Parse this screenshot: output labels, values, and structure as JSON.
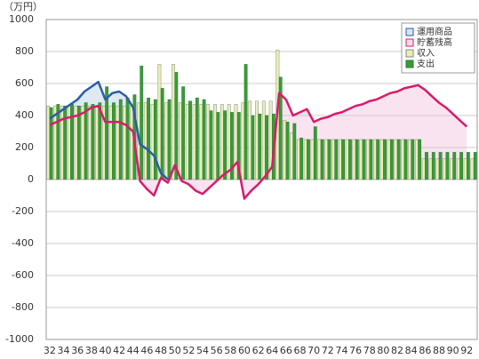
{
  "chart_data": {
    "type": "bar-line",
    "unit_label": "（万円）",
    "categories": [
      "32",
      null,
      "34",
      null,
      "36",
      null,
      "38",
      null,
      "40",
      null,
      "42",
      null,
      "44",
      null,
      "46",
      null,
      "48",
      null,
      "50",
      null,
      "52",
      null,
      "54",
      null,
      "56",
      null,
      "58",
      null,
      "60",
      null,
      "62",
      null,
      "64",
      null,
      "66",
      null,
      "68",
      null,
      "70",
      null,
      "72",
      null,
      "74",
      null,
      "76",
      null,
      "78",
      null,
      "80",
      null,
      "82",
      null,
      "84",
      null,
      "86",
      null,
      "88",
      null,
      "90",
      null,
      "92",
      null
    ],
    "series": [
      {
        "name": "運用商品",
        "kind": "area-line",
        "color": "#2a5caa",
        "fill": "#d6e4f0",
        "values": [
          380,
          410,
          440,
          470,
          500,
          550,
          580,
          610,
          500,
          540,
          550,
          520,
          450,
          220,
          190,
          150,
          40,
          0,
          null,
          null,
          null,
          null,
          null,
          null,
          null,
          null,
          null,
          null,
          null,
          null,
          null,
          null,
          null,
          null,
          null,
          null,
          null,
          null,
          null,
          null,
          null,
          null,
          null,
          null,
          null,
          null,
          null,
          null,
          null,
          null,
          null,
          null,
          null,
          null,
          null,
          null,
          null,
          null,
          null,
          null,
          null,
          null
        ]
      },
      {
        "name": "貯蓄残高",
        "kind": "area-line",
        "color": "#d81b6a",
        "fill": "#f7dcec",
        "values": [
          340,
          360,
          380,
          390,
          400,
          420,
          450,
          460,
          360,
          360,
          360,
          340,
          300,
          -10,
          -60,
          -100,
          10,
          -20,
          90,
          -10,
          -30,
          -70,
          -90,
          -50,
          -10,
          30,
          60,
          110,
          -120,
          -70,
          -30,
          20,
          80,
          540,
          500,
          400,
          420,
          440,
          360,
          380,
          390,
          410,
          420,
          440,
          460,
          470,
          490,
          500,
          520,
          540,
          550,
          570,
          580,
          590,
          560,
          520,
          480,
          450,
          410,
          370,
          330,
          null
        ]
      },
      {
        "name": "収入",
        "kind": "bar",
        "color": "#e8efb4",
        "stroke": "#8a8a8a",
        "values": [
          460,
          460,
          460,
          460,
          460,
          460,
          460,
          460,
          460,
          460,
          460,
          460,
          460,
          480,
          480,
          470,
          720,
          480,
          720,
          480,
          470,
          470,
          470,
          470,
          470,
          470,
          470,
          470,
          480,
          490,
          490,
          490,
          490,
          810,
          370,
          290,
          250,
          250,
          250,
          250,
          250,
          250,
          250,
          250,
          250,
          250,
          250,
          250,
          250,
          250,
          250,
          250,
          250,
          250,
          130,
          130,
          130,
          130,
          130,
          130,
          130,
          130
        ]
      },
      {
        "name": "支出",
        "kind": "bar",
        "color": "#3a9a3a",
        "stroke": "#2c7a2c",
        "values": [
          450,
          470,
          460,
          470,
          460,
          480,
          470,
          480,
          580,
          480,
          500,
          510,
          530,
          710,
          510,
          500,
          570,
          500,
          670,
          580,
          490,
          510,
          500,
          430,
          420,
          430,
          420,
          420,
          720,
          400,
          410,
          400,
          410,
          640,
          360,
          350,
          260,
          250,
          330,
          250,
          250,
          250,
          250,
          250,
          250,
          250,
          250,
          250,
          250,
          250,
          250,
          250,
          250,
          250,
          170,
          170,
          170,
          170,
          170,
          170,
          170,
          170
        ]
      }
    ],
    "ylim": [
      -1000,
      1000
    ],
    "yticks": [
      -1000,
      -800,
      -600,
      -400,
      -200,
      0,
      200,
      400,
      600,
      800,
      1000
    ],
    "grid": true,
    "legend": "top-right"
  }
}
